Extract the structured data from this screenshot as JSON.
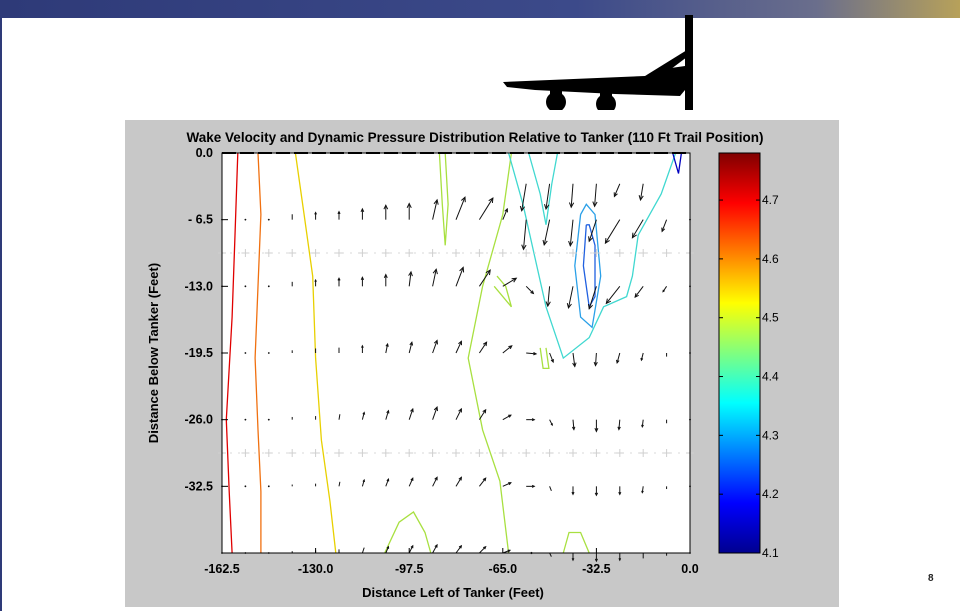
{
  "slide": {
    "number": "8"
  },
  "colors": {
    "header_bar": "#2e3a78",
    "panel": "#c8c8c8",
    "plot_bg": "#ffffff",
    "arrow": "#111111"
  },
  "icons": {
    "decoration": "airplane-silhouette-icon"
  },
  "chart_data": {
    "type": "contour",
    "title": "Wake Velocity and Dynamic Pressure Distribution Relative to Tanker (110 Ft Trail Position)",
    "xlabel": "Distance Left of Tanker (Feet)",
    "ylabel": "Distance Below Tanker (Feet)",
    "xlim": [
      -162.5,
      0.0
    ],
    "ylim": [
      -39.0,
      0.0
    ],
    "xticks": [
      "-162.5",
      "-130.0",
      "-97.5",
      "-65.0",
      "-32.5",
      "0.0"
    ],
    "yticks": [
      "0.0",
      "- 6.5",
      "-13.0",
      "-19.5",
      "-26.0",
      "-32.5"
    ],
    "xtick_values": [
      -162.5,
      -130.0,
      -97.5,
      -65.0,
      -32.5,
      0.0
    ],
    "ytick_values": [
      0.0,
      -6.5,
      -13.0,
      -19.5,
      -26.0,
      -32.5
    ],
    "colorbar": {
      "colormap": "jet",
      "range": [
        4.1,
        4.78
      ],
      "ticks": [
        "4.7",
        "4.6",
        "4.5",
        "4.4",
        "4.3",
        "4.2",
        "4.1"
      ],
      "tick_values": [
        4.7,
        4.6,
        4.5,
        4.4,
        4.3,
        4.2,
        4.1
      ]
    },
    "contours": [
      {
        "level": 4.75,
        "color": "#e00000",
        "points": [
          [
            -157,
            0
          ],
          [
            -158,
            -8
          ],
          [
            -159,
            -16
          ],
          [
            -161,
            -26
          ],
          [
            -160,
            -33
          ],
          [
            -159,
            -39
          ]
        ]
      },
      {
        "level": 4.65,
        "color": "#f07010",
        "points": [
          [
            -150,
            0
          ],
          [
            -149,
            -6
          ],
          [
            -150,
            -13
          ],
          [
            -151,
            -20
          ],
          [
            -150,
            -27
          ],
          [
            -149,
            -33
          ],
          [
            -149,
            -39
          ]
        ]
      },
      {
        "level": 4.5,
        "color": "#e8d000",
        "points": [
          [
            -137,
            0
          ],
          [
            -134,
            -6
          ],
          [
            -131,
            -12
          ],
          [
            -130,
            -20
          ],
          [
            -128,
            -28
          ],
          [
            -125,
            -34
          ],
          [
            -123,
            -39
          ]
        ]
      },
      {
        "level": 4.45,
        "color": "#a8e040",
        "points": [
          [
            -85,
            0
          ],
          [
            -84,
            -5
          ],
          [
            -85,
            -9
          ],
          [
            -86,
            -5
          ],
          [
            -87,
            0
          ]
        ]
      },
      {
        "level": 4.45,
        "color": "#a8e040",
        "points": [
          [
            -62,
            0
          ],
          [
            -65,
            -6
          ],
          [
            -72,
            -13
          ],
          [
            -77,
            -20
          ],
          [
            -72,
            -27
          ],
          [
            -66,
            -32
          ],
          [
            -63,
            -39
          ]
        ]
      },
      {
        "level": 4.45,
        "color": "#a8e040",
        "points": [
          [
            -68,
            -13
          ],
          [
            -65,
            -14
          ],
          [
            -62,
            -15
          ],
          [
            -64,
            -13
          ],
          [
            -67,
            -12
          ]
        ]
      },
      {
        "level": 4.45,
        "color": "#a8e040",
        "points": [
          [
            -106,
            -39
          ],
          [
            -101,
            -36
          ],
          [
            -96,
            -35
          ],
          [
            -92,
            -37
          ],
          [
            -90,
            -39
          ]
        ]
      },
      {
        "level": 4.45,
        "color": "#a8e040",
        "points": [
          [
            -35,
            -39
          ],
          [
            -38,
            -37
          ],
          [
            -42,
            -37
          ],
          [
            -44,
            -39
          ]
        ]
      },
      {
        "level": 4.45,
        "color": "#a8e040",
        "points": [
          [
            -52,
            -19
          ],
          [
            -51,
            -21
          ],
          [
            -49,
            -21
          ],
          [
            -50,
            -19
          ]
        ]
      },
      {
        "level": 4.35,
        "color": "#40d8d0",
        "points": [
          [
            -63,
            0
          ],
          [
            -58,
            -5
          ],
          [
            -54,
            -10
          ],
          [
            -50,
            -15
          ],
          [
            -44,
            -20
          ],
          [
            -35,
            -18
          ],
          [
            -30,
            -15
          ],
          [
            -22,
            -14
          ],
          [
            -20,
            -12
          ],
          [
            -18,
            -8
          ],
          [
            -10,
            -4
          ],
          [
            -5,
            0
          ]
        ]
      },
      {
        "level": 4.35,
        "color": "#40d8d0",
        "points": [
          [
            -56,
            0
          ],
          [
            -52,
            -4
          ],
          [
            -50,
            -7
          ],
          [
            -48,
            -3
          ],
          [
            -46,
            0
          ]
        ]
      },
      {
        "level": 4.3,
        "color": "#2aa0e8",
        "points": [
          [
            -38,
            -6
          ],
          [
            -40,
            -11
          ],
          [
            -38,
            -16
          ],
          [
            -34,
            -17
          ],
          [
            -31,
            -12
          ],
          [
            -33,
            -6
          ],
          [
            -36,
            -5
          ],
          [
            -38,
            -6
          ]
        ]
      },
      {
        "level": 4.2,
        "color": "#2060e0",
        "points": [
          [
            -36,
            -7
          ],
          [
            -37,
            -11
          ],
          [
            -35,
            -15
          ],
          [
            -33,
            -14
          ],
          [
            -33,
            -9
          ],
          [
            -35,
            -7
          ],
          [
            -36,
            -7
          ]
        ]
      },
      {
        "level": 4.15,
        "color": "#0000c0",
        "points": [
          [
            -6,
            0
          ],
          [
            -4,
            -2
          ],
          [
            -3,
            0
          ]
        ]
      }
    ],
    "vector_field": {
      "x": [
        -162.5,
        -154.375,
        -146.25,
        -138.125,
        -130.0,
        -121.875,
        -113.75,
        -105.625,
        -97.5,
        -89.375,
        -81.25,
        -73.125,
        -65.0,
        -56.875,
        -48.75,
        -40.625,
        -32.5,
        -24.375,
        -16.25,
        -8.125,
        0.0
      ],
      "y": [
        -6.5,
        -13.0,
        -19.5,
        -26.0,
        -32.5,
        -39.0
      ],
      "u": [
        [
          0,
          0,
          0,
          0,
          0,
          0,
          0,
          0,
          0,
          0.5,
          1,
          1.5,
          0.5,
          -0.3,
          -0.6,
          -0.3,
          -0.8,
          -1.6,
          -1.2,
          -0.5,
          0
        ],
        [
          0,
          0,
          0,
          0,
          0,
          0,
          0,
          0,
          0.2,
          0.4,
          0.8,
          1.2,
          1.5,
          0.8,
          -0.2,
          -0.5,
          -0.8,
          -1.5,
          -0.9,
          -0.4,
          0
        ],
        [
          0,
          0,
          0,
          0,
          0,
          0,
          0,
          0.2,
          0.3,
          0.5,
          0.6,
          0.8,
          1.0,
          1.1,
          0.4,
          0.2,
          -0.1,
          -0.3,
          -0.2,
          0,
          0
        ],
        [
          0,
          0,
          0,
          0,
          0,
          0.1,
          0.2,
          0.3,
          0.4,
          0.5,
          0.6,
          0.7,
          0.9,
          0.9,
          0.3,
          0.1,
          0,
          -0.1,
          -0.1,
          0,
          0
        ],
        [
          0,
          0,
          0,
          0,
          0,
          0.1,
          0.2,
          0.3,
          0.4,
          0.5,
          0.6,
          0.7,
          0.9,
          0.9,
          0.2,
          0,
          0,
          0,
          -0.1,
          0,
          0
        ],
        [
          0,
          0,
          0,
          0,
          0,
          0,
          0.2,
          0.3,
          0.4,
          0.5,
          0.6,
          0.7,
          0.8,
          0.7,
          0.2,
          0,
          0,
          0,
          0,
          0,
          0
        ]
      ],
      "v": [
        [
          0,
          0,
          0,
          0.6,
          0.8,
          0.9,
          1.2,
          1.6,
          1.8,
          2.2,
          2.5,
          2.4,
          1.2,
          -3.3,
          -2.8,
          -2.9,
          -2.4,
          -2.6,
          -2.0,
          -1.3,
          0
        ],
        [
          0,
          0,
          0,
          0.5,
          0.7,
          0.9,
          1.0,
          1.3,
          1.6,
          1.9,
          2.1,
          1.8,
          0.9,
          -0.8,
          -2.2,
          -2.4,
          -2.5,
          -1.9,
          -1.2,
          -0.6,
          0
        ],
        [
          0,
          0,
          0,
          0.3,
          0.5,
          0.6,
          0.8,
          1.0,
          1.2,
          1.4,
          1.3,
          1.2,
          0.8,
          -0.1,
          -1.0,
          -1.5,
          -1.4,
          -1.1,
          -0.8,
          -0.4,
          0
        ],
        [
          0,
          0,
          0,
          0.3,
          0.4,
          0.6,
          0.8,
          1.0,
          1.2,
          1.4,
          1.2,
          1.1,
          0.5,
          0,
          -0.6,
          -1.1,
          -1.3,
          -1.1,
          -0.8,
          -0.4,
          0
        ],
        [
          0,
          0,
          0,
          0.2,
          0.3,
          0.5,
          0.7,
          0.8,
          0.9,
          1.0,
          1.0,
          0.9,
          0.4,
          0,
          -0.5,
          -0.9,
          -1.0,
          -0.9,
          -0.7,
          -0.3,
          0
        ],
        [
          0,
          0,
          0,
          0.2,
          0.3,
          0.4,
          0.6,
          0.7,
          0.8,
          0.9,
          0.8,
          0.7,
          0.3,
          0,
          -0.4,
          -0.8,
          -0.9,
          -0.8,
          -0.6,
          -0.3,
          0
        ]
      ]
    },
    "upper_vectors": {
      "x": [
        -56.875,
        -48.75,
        -40.625,
        -32.5,
        -24.375,
        -16.25
      ],
      "y": [
        -3.0,
        -3.0,
        -3.0,
        -3.0,
        -3.0,
        -3.0
      ],
      "u": [
        -0.5,
        -0.4,
        -0.2,
        -0.2,
        -0.6,
        -0.3
      ],
      "v": [
        -3.0,
        -2.8,
        -2.6,
        -2.5,
        -1.4,
        -1.8
      ]
    }
  }
}
